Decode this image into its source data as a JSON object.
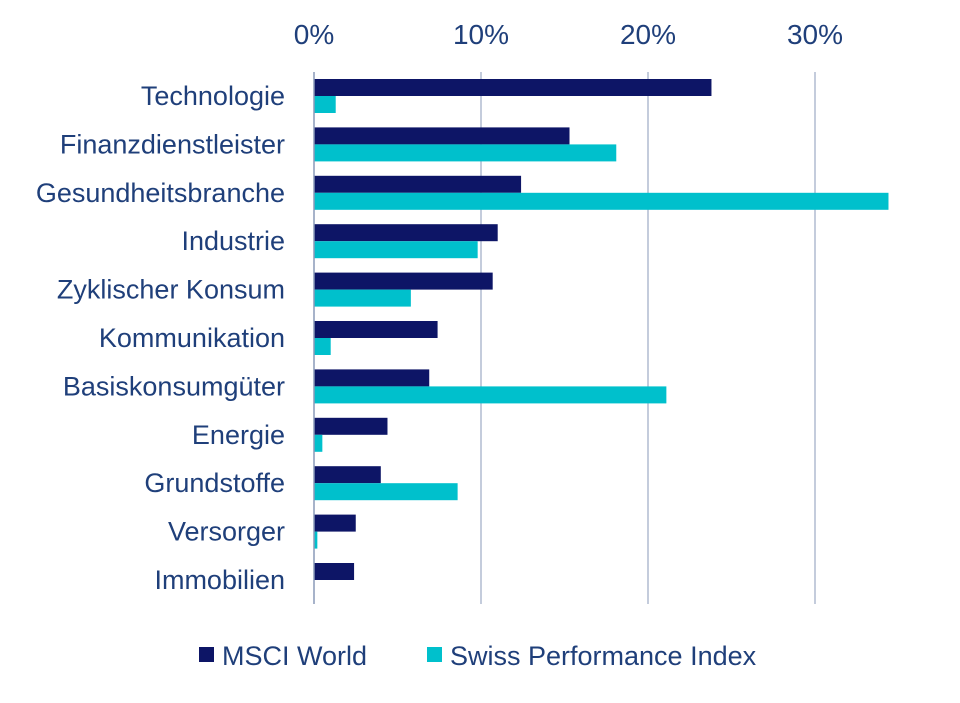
{
  "chart_data": {
    "type": "bar",
    "orientation": "horizontal",
    "categories": [
      "Technologie",
      "Finanzdienstleister",
      "Gesundheitsbranche",
      "Industrie",
      "Zyklischer Konsum",
      "Kommunikation",
      "Basiskonsumgüter",
      "Energie",
      "Grundstoffe",
      "Versorger",
      "Immobilien"
    ],
    "series": [
      {
        "name": "MSCI World",
        "color": "#0d1566",
        "values": [
          23.8,
          15.3,
          12.4,
          11.0,
          10.7,
          7.4,
          6.9,
          4.4,
          4.0,
          2.5,
          2.4
        ]
      },
      {
        "name": "Swiss Performance Index",
        "color": "#00c0cc",
        "values": [
          1.3,
          18.1,
          34.4,
          9.8,
          5.8,
          1.0,
          21.1,
          0.5,
          8.6,
          0.2,
          0.0
        ]
      }
    ],
    "xlim": [
      0,
      35
    ],
    "xticks": [
      0,
      10,
      20,
      30
    ],
    "tick_labels": [
      "0%",
      "10%",
      "20%",
      "30%"
    ],
    "title": "",
    "xlabel": "",
    "ylabel": "",
    "grid": "vertical",
    "legend_position": "bottom"
  }
}
